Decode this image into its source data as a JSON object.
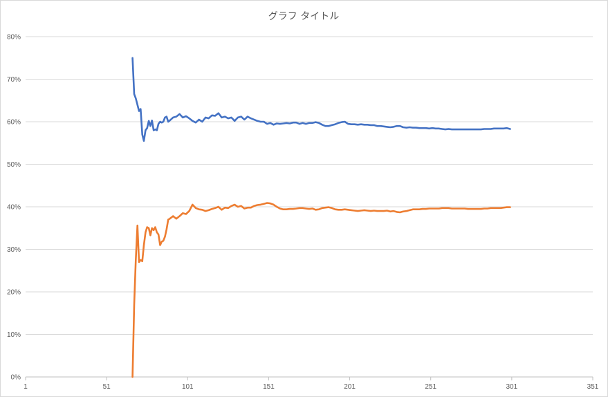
{
  "chart_data": {
    "type": "line",
    "title": "グラフ タイトル",
    "xlabel": "",
    "ylabel": "",
    "xlim": [
      1,
      351
    ],
    "ylim": [
      0,
      0.8
    ],
    "x_ticks": [
      1,
      51,
      101,
      151,
      201,
      251,
      301,
      351
    ],
    "x_tick_labels": [
      "1",
      "51",
      "101",
      "151",
      "201",
      "251",
      "301",
      "351"
    ],
    "y_ticks": [
      0,
      0.1,
      0.2,
      0.3,
      0.4,
      0.5,
      0.6,
      0.7,
      0.8
    ],
    "y_tick_labels": [
      "0%",
      "10%",
      "20%",
      "30%",
      "40%",
      "50%",
      "60%",
      "70%",
      "80%"
    ],
    "grid": true,
    "legend": "none",
    "series": [
      {
        "color": "#4472C4",
        "points": [
          [
            67,
            0.75
          ],
          [
            68,
            0.665
          ],
          [
            69,
            0.655
          ],
          [
            70,
            0.64
          ],
          [
            71,
            0.625
          ],
          [
            72,
            0.63
          ],
          [
            73,
            0.57
          ],
          [
            74,
            0.555
          ],
          [
            75,
            0.58
          ],
          [
            76,
            0.585
          ],
          [
            77,
            0.602
          ],
          [
            78,
            0.59
          ],
          [
            79,
            0.603
          ],
          [
            80,
            0.58
          ],
          [
            81,
            0.582
          ],
          [
            82,
            0.58
          ],
          [
            83,
            0.595
          ],
          [
            84,
            0.6
          ],
          [
            85,
            0.598
          ],
          [
            86,
            0.6
          ],
          [
            87,
            0.61
          ],
          [
            88,
            0.612
          ],
          [
            89,
            0.6
          ],
          [
            90,
            0.603
          ],
          [
            92,
            0.61
          ],
          [
            94,
            0.612
          ],
          [
            96,
            0.618
          ],
          [
            98,
            0.61
          ],
          [
            100,
            0.613
          ],
          [
            102,
            0.608
          ],
          [
            104,
            0.602
          ],
          [
            106,
            0.598
          ],
          [
            108,
            0.605
          ],
          [
            110,
            0.6
          ],
          [
            112,
            0.61
          ],
          [
            114,
            0.608
          ],
          [
            116,
            0.615
          ],
          [
            118,
            0.614
          ],
          [
            120,
            0.62
          ],
          [
            122,
            0.61
          ],
          [
            124,
            0.612
          ],
          [
            126,
            0.608
          ],
          [
            128,
            0.61
          ],
          [
            130,
            0.602
          ],
          [
            132,
            0.61
          ],
          [
            134,
            0.612
          ],
          [
            136,
            0.605
          ],
          [
            138,
            0.612
          ],
          [
            140,
            0.608
          ],
          [
            142,
            0.605
          ],
          [
            144,
            0.602
          ],
          [
            146,
            0.6
          ],
          [
            148,
            0.6
          ],
          [
            150,
            0.595
          ],
          [
            152,
            0.597
          ],
          [
            154,
            0.593
          ],
          [
            156,
            0.596
          ],
          [
            158,
            0.595
          ],
          [
            160,
            0.596
          ],
          [
            162,
            0.597
          ],
          [
            164,
            0.596
          ],
          [
            166,
            0.598
          ],
          [
            168,
            0.598
          ],
          [
            170,
            0.595
          ],
          [
            172,
            0.597
          ],
          [
            174,
            0.595
          ],
          [
            176,
            0.597
          ],
          [
            178,
            0.597
          ],
          [
            180,
            0.599
          ],
          [
            182,
            0.597
          ],
          [
            184,
            0.593
          ],
          [
            186,
            0.59
          ],
          [
            188,
            0.59
          ],
          [
            190,
            0.592
          ],
          [
            192,
            0.594
          ],
          [
            194,
            0.597
          ],
          [
            196,
            0.599
          ],
          [
            198,
            0.6
          ],
          [
            200,
            0.595
          ],
          [
            202,
            0.594
          ],
          [
            204,
            0.594
          ],
          [
            206,
            0.593
          ],
          [
            208,
            0.594
          ],
          [
            210,
            0.593
          ],
          [
            212,
            0.593
          ],
          [
            214,
            0.592
          ],
          [
            216,
            0.592
          ],
          [
            218,
            0.59
          ],
          [
            220,
            0.59
          ],
          [
            222,
            0.589
          ],
          [
            224,
            0.588
          ],
          [
            226,
            0.587
          ],
          [
            228,
            0.588
          ],
          [
            230,
            0.59
          ],
          [
            232,
            0.59
          ],
          [
            234,
            0.587
          ],
          [
            236,
            0.586
          ],
          [
            238,
            0.587
          ],
          [
            240,
            0.586
          ],
          [
            242,
            0.586
          ],
          [
            244,
            0.585
          ],
          [
            246,
            0.585
          ],
          [
            248,
            0.585
          ],
          [
            250,
            0.584
          ],
          [
            252,
            0.585
          ],
          [
            254,
            0.584
          ],
          [
            256,
            0.584
          ],
          [
            258,
            0.583
          ],
          [
            260,
            0.582
          ],
          [
            262,
            0.583
          ],
          [
            264,
            0.582
          ],
          [
            266,
            0.582
          ],
          [
            268,
            0.582
          ],
          [
            270,
            0.582
          ],
          [
            272,
            0.582
          ],
          [
            274,
            0.582
          ],
          [
            276,
            0.582
          ],
          [
            278,
            0.582
          ],
          [
            280,
            0.582
          ],
          [
            282,
            0.582
          ],
          [
            284,
            0.583
          ],
          [
            286,
            0.583
          ],
          [
            288,
            0.583
          ],
          [
            290,
            0.584
          ],
          [
            292,
            0.584
          ],
          [
            294,
            0.584
          ],
          [
            296,
            0.584
          ],
          [
            298,
            0.585
          ],
          [
            300,
            0.583
          ]
        ]
      },
      {
        "color": "#ED7D31",
        "points": [
          [
            67,
            0.0
          ],
          [
            68,
            0.17
          ],
          [
            69,
            0.275
          ],
          [
            70,
            0.356
          ],
          [
            71,
            0.27
          ],
          [
            72,
            0.275
          ],
          [
            73,
            0.272
          ],
          [
            74,
            0.31
          ],
          [
            75,
            0.34
          ],
          [
            76,
            0.352
          ],
          [
            77,
            0.35
          ],
          [
            78,
            0.333
          ],
          [
            79,
            0.35
          ],
          [
            80,
            0.345
          ],
          [
            81,
            0.352
          ],
          [
            82,
            0.34
          ],
          [
            83,
            0.335
          ],
          [
            84,
            0.31
          ],
          [
            85,
            0.318
          ],
          [
            86,
            0.32
          ],
          [
            87,
            0.33
          ],
          [
            88,
            0.347
          ],
          [
            89,
            0.37
          ],
          [
            90,
            0.372
          ],
          [
            92,
            0.378
          ],
          [
            94,
            0.372
          ],
          [
            96,
            0.378
          ],
          [
            98,
            0.385
          ],
          [
            100,
            0.383
          ],
          [
            102,
            0.39
          ],
          [
            104,
            0.405
          ],
          [
            106,
            0.397
          ],
          [
            108,
            0.394
          ],
          [
            110,
            0.393
          ],
          [
            112,
            0.39
          ],
          [
            114,
            0.392
          ],
          [
            116,
            0.395
          ],
          [
            118,
            0.397
          ],
          [
            120,
            0.4
          ],
          [
            122,
            0.393
          ],
          [
            124,
            0.398
          ],
          [
            126,
            0.397
          ],
          [
            128,
            0.402
          ],
          [
            130,
            0.405
          ],
          [
            132,
            0.4
          ],
          [
            134,
            0.402
          ],
          [
            136,
            0.396
          ],
          [
            138,
            0.398
          ],
          [
            140,
            0.398
          ],
          [
            142,
            0.402
          ],
          [
            144,
            0.404
          ],
          [
            146,
            0.405
          ],
          [
            148,
            0.407
          ],
          [
            150,
            0.409
          ],
          [
            152,
            0.408
          ],
          [
            154,
            0.405
          ],
          [
            156,
            0.4
          ],
          [
            158,
            0.396
          ],
          [
            160,
            0.394
          ],
          [
            162,
            0.394
          ],
          [
            164,
            0.395
          ],
          [
            166,
            0.395
          ],
          [
            168,
            0.396
          ],
          [
            170,
            0.397
          ],
          [
            172,
            0.397
          ],
          [
            174,
            0.396
          ],
          [
            176,
            0.395
          ],
          [
            178,
            0.396
          ],
          [
            180,
            0.393
          ],
          [
            182,
            0.394
          ],
          [
            184,
            0.397
          ],
          [
            186,
            0.398
          ],
          [
            188,
            0.399
          ],
          [
            190,
            0.397
          ],
          [
            192,
            0.394
          ],
          [
            194,
            0.393
          ],
          [
            196,
            0.393
          ],
          [
            198,
            0.394
          ],
          [
            200,
            0.393
          ],
          [
            202,
            0.392
          ],
          [
            204,
            0.391
          ],
          [
            206,
            0.39
          ],
          [
            208,
            0.391
          ],
          [
            210,
            0.392
          ],
          [
            212,
            0.391
          ],
          [
            214,
            0.39
          ],
          [
            216,
            0.391
          ],
          [
            218,
            0.39
          ],
          [
            220,
            0.39
          ],
          [
            222,
            0.39
          ],
          [
            224,
            0.391
          ],
          [
            226,
            0.389
          ],
          [
            228,
            0.39
          ],
          [
            230,
            0.388
          ],
          [
            232,
            0.387
          ],
          [
            234,
            0.389
          ],
          [
            236,
            0.39
          ],
          [
            238,
            0.392
          ],
          [
            240,
            0.394
          ],
          [
            242,
            0.394
          ],
          [
            244,
            0.394
          ],
          [
            246,
            0.395
          ],
          [
            248,
            0.395
          ],
          [
            250,
            0.396
          ],
          [
            252,
            0.396
          ],
          [
            254,
            0.396
          ],
          [
            256,
            0.396
          ],
          [
            258,
            0.397
          ],
          [
            260,
            0.397
          ],
          [
            262,
            0.397
          ],
          [
            264,
            0.396
          ],
          [
            266,
            0.396
          ],
          [
            268,
            0.396
          ],
          [
            270,
            0.396
          ],
          [
            272,
            0.396
          ],
          [
            274,
            0.395
          ],
          [
            276,
            0.395
          ],
          [
            278,
            0.395
          ],
          [
            280,
            0.395
          ],
          [
            282,
            0.395
          ],
          [
            284,
            0.396
          ],
          [
            286,
            0.396
          ],
          [
            288,
            0.397
          ],
          [
            290,
            0.397
          ],
          [
            292,
            0.397
          ],
          [
            294,
            0.397
          ],
          [
            296,
            0.398
          ],
          [
            298,
            0.399
          ],
          [
            300,
            0.399
          ]
        ]
      }
    ]
  }
}
